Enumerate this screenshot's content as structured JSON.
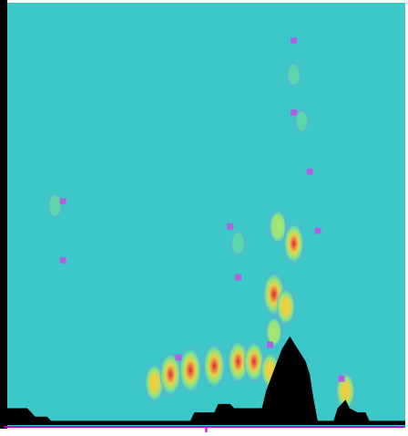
{
  "chart_data": {
    "type": "heatmap",
    "title": "",
    "xlabel": "",
    "ylabel": "",
    "xlim": [
      0,
      1
    ],
    "ylim": [
      0,
      1
    ],
    "grid": false,
    "legend": "none",
    "colors": {
      "background": "#3cc8c8",
      "frame": "#ffffff",
      "left_edge": "#000000",
      "terrain": "#000000",
      "axis_line": "#cc00cc",
      "contour_edge": "#b080e0",
      "marker": "#b060e0",
      "low": "#60d8a8",
      "mid": "#a8e870",
      "high": "#f0d040",
      "peak": "#e82040"
    },
    "cells": [
      {
        "x": 0.72,
        "y": 0.83,
        "intensity": 0.15
      },
      {
        "x": 0.74,
        "y": 0.72,
        "intensity": 0.12
      },
      {
        "x": 0.12,
        "y": 0.52,
        "intensity": 0.18
      },
      {
        "x": 0.58,
        "y": 0.43,
        "intensity": 0.22
      },
      {
        "x": 0.68,
        "y": 0.47,
        "intensity": 0.55
      },
      {
        "x": 0.72,
        "y": 0.43,
        "intensity": 0.82
      },
      {
        "x": 0.67,
        "y": 0.31,
        "intensity": 0.95
      },
      {
        "x": 0.7,
        "y": 0.28,
        "intensity": 0.68
      },
      {
        "x": 0.67,
        "y": 0.22,
        "intensity": 0.42
      },
      {
        "x": 0.37,
        "y": 0.1,
        "intensity": 0.72
      },
      {
        "x": 0.41,
        "y": 0.12,
        "intensity": 0.9
      },
      {
        "x": 0.46,
        "y": 0.13,
        "intensity": 1.0
      },
      {
        "x": 0.52,
        "y": 0.14,
        "intensity": 0.95
      },
      {
        "x": 0.58,
        "y": 0.15,
        "intensity": 0.88
      },
      {
        "x": 0.62,
        "y": 0.15,
        "intensity": 0.82
      },
      {
        "x": 0.66,
        "y": 0.13,
        "intensity": 0.62
      },
      {
        "x": 0.85,
        "y": 0.08,
        "intensity": 0.7
      }
    ],
    "markers": [
      {
        "x": 0.72,
        "y": 0.91
      },
      {
        "x": 0.72,
        "y": 0.74
      },
      {
        "x": 0.76,
        "y": 0.6
      },
      {
        "x": 0.78,
        "y": 0.46
      },
      {
        "x": 0.14,
        "y": 0.53
      },
      {
        "x": 0.14,
        "y": 0.39
      },
      {
        "x": 0.56,
        "y": 0.47
      },
      {
        "x": 0.58,
        "y": 0.35
      },
      {
        "x": 0.66,
        "y": 0.19
      },
      {
        "x": 0.43,
        "y": 0.16
      },
      {
        "x": 0.84,
        "y": 0.11
      }
    ],
    "terrain": [
      [
        0.0,
        0.04
      ],
      [
        0.05,
        0.04
      ],
      [
        0.07,
        0.02
      ],
      [
        0.1,
        0.02
      ],
      [
        0.11,
        0.01
      ],
      [
        0.13,
        0.01
      ],
      [
        0.46,
        0.01
      ],
      [
        0.47,
        0.03
      ],
      [
        0.52,
        0.03
      ],
      [
        0.53,
        0.05
      ],
      [
        0.56,
        0.05
      ],
      [
        0.57,
        0.04
      ],
      [
        0.64,
        0.04
      ],
      [
        0.65,
        0.08
      ],
      [
        0.67,
        0.13
      ],
      [
        0.69,
        0.18
      ],
      [
        0.71,
        0.21
      ],
      [
        0.73,
        0.18
      ],
      [
        0.75,
        0.15
      ],
      [
        0.76,
        0.12
      ],
      [
        0.77,
        0.06
      ],
      [
        0.78,
        0.01
      ],
      [
        0.82,
        0.01
      ],
      [
        0.83,
        0.04
      ],
      [
        0.85,
        0.06
      ],
      [
        0.86,
        0.04
      ],
      [
        0.88,
        0.03
      ],
      [
        0.9,
        0.03
      ],
      [
        0.91,
        0.01
      ],
      [
        1.0,
        0.01
      ]
    ]
  }
}
